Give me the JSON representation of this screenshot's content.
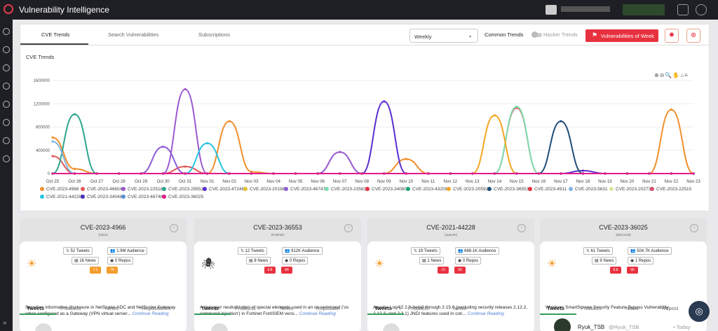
{
  "app_title": "Vulnerability Intelligence",
  "tabs": [
    "CVE Trends",
    "Search Vulnerabilities",
    "Subscriptions"
  ],
  "period_select": "Weekly",
  "common_trends": "Common Trends",
  "hacker_trends": "Hacker Trends",
  "vuln_week_button": "Vulnerabilities of Week",
  "section_title": "CVE Trends",
  "colors": {
    "accent": "#e8313f",
    "dark": "#1e1f24"
  },
  "chart_data": {
    "type": "line",
    "x": [
      "Oct 25",
      "Oct 26",
      "Oct 27",
      "Oct 28",
      "Oct 29",
      "Oct 30",
      "Oct 31",
      "Nov 01",
      "Nov 02",
      "Nov 03",
      "Nov 04",
      "Nov 05",
      "Nov 06",
      "Nov 07",
      "Nov 08",
      "Nov 09",
      "Nov 10",
      "Nov 11",
      "Nov 12",
      "Nov 13",
      "Nov 14",
      "Nov 15",
      "Nov 16",
      "Nov 17",
      "Nov 18",
      "Nov 19",
      "Nov 20",
      "Nov 21",
      "Nov 22",
      "Nov 23"
    ],
    "ylim": [
      0,
      1600000
    ],
    "yticks": [
      "1600000",
      "1200000",
      "800000",
      "400000",
      "0"
    ],
    "series": [
      {
        "name": "CVE-2023-4966",
        "color": "#f28e2b",
        "values": [
          620000,
          80000,
          0,
          0,
          0,
          0,
          0,
          0,
          900000,
          30000,
          0,
          0,
          0,
          0,
          0,
          0,
          250000,
          0,
          0,
          0,
          0,
          0,
          0,
          0,
          0,
          0,
          0,
          0,
          1100000,
          0
        ]
      },
      {
        "name": "CVE-2023-46604",
        "color": "#e15759",
        "values": [
          300000,
          0,
          0,
          0,
          0,
          0,
          120000,
          0,
          0,
          0,
          0,
          0,
          0,
          0,
          0,
          0,
          0,
          0,
          0,
          0,
          0,
          1130000,
          0,
          0,
          0,
          0,
          0,
          0,
          0,
          0
        ]
      },
      {
        "name": "CVE-2023-22518",
        "color": "#9b59d0",
        "values": [
          0,
          0,
          0,
          0,
          0,
          0,
          1450000,
          0,
          0,
          0,
          0,
          0,
          0,
          370000,
          0,
          0,
          0,
          0,
          0,
          0,
          0,
          0,
          0,
          0,
          0,
          0,
          0,
          0,
          0,
          0
        ]
      },
      {
        "name": "CVE-2023-29552",
        "color": "#2ca58d",
        "values": [
          0,
          1020000,
          0,
          0,
          0,
          0,
          0,
          0,
          0,
          0,
          0,
          0,
          0,
          0,
          0,
          0,
          0,
          0,
          0,
          0,
          0,
          0,
          0,
          0,
          0,
          0,
          0,
          0,
          0,
          0
        ]
      },
      {
        "name": "CVE-2023-47246",
        "color": "#5a2ecf",
        "values": [
          0,
          0,
          0,
          0,
          0,
          0,
          0,
          0,
          0,
          0,
          0,
          0,
          0,
          0,
          0,
          1240000,
          0,
          0,
          0,
          0,
          0,
          0,
          0,
          0,
          50000,
          0,
          0,
          0,
          0,
          0
        ]
      },
      {
        "name": "CVE-2023-20198",
        "color": "#e5c02d",
        "values": [
          0,
          0,
          0,
          0,
          0,
          0,
          0,
          0,
          0,
          0,
          0,
          0,
          0,
          0,
          0,
          0,
          0,
          0,
          0,
          0,
          0,
          0,
          0,
          0,
          0,
          0,
          0,
          0,
          0,
          0
        ]
      },
      {
        "name": "CVE-2023-46747",
        "color": "#8e5bd6",
        "values": [
          0,
          0,
          0,
          0,
          0,
          460000,
          0,
          0,
          0,
          0,
          0,
          0,
          0,
          0,
          0,
          0,
          0,
          0,
          0,
          0,
          0,
          0,
          0,
          0,
          0,
          0,
          0,
          0,
          0,
          0
        ]
      },
      {
        "name": "CVE-2023-23583",
        "color": "#7ee0b0",
        "values": [
          0,
          0,
          0,
          0,
          0,
          0,
          0,
          0,
          0,
          0,
          0,
          0,
          0,
          0,
          0,
          0,
          0,
          0,
          0,
          0,
          0,
          1150000,
          0,
          0,
          0,
          0,
          0,
          0,
          0,
          0
        ]
      },
      {
        "name": "CVE-2023-34060",
        "color": "#e8313f",
        "values": [
          0,
          0,
          0,
          0,
          0,
          0,
          0,
          0,
          0,
          0,
          0,
          0,
          0,
          0,
          0,
          0,
          0,
          0,
          0,
          0,
          0,
          0,
          0,
          0,
          0,
          0,
          0,
          0,
          0,
          0
        ]
      },
      {
        "name": "CVE-2023-43208",
        "color": "#17a572",
        "values": [
          0,
          0,
          0,
          0,
          0,
          0,
          0,
          0,
          0,
          0,
          0,
          0,
          0,
          0,
          0,
          0,
          0,
          0,
          0,
          0,
          0,
          0,
          0,
          0,
          0,
          0,
          0,
          0,
          0,
          0
        ]
      },
      {
        "name": "CVE-2023-20592",
        "color": "#f4a622",
        "values": [
          0,
          0,
          0,
          0,
          0,
          0,
          0,
          0,
          0,
          0,
          0,
          0,
          0,
          0,
          0,
          0,
          0,
          0,
          0,
          0,
          1000000,
          0,
          0,
          0,
          0,
          0,
          0,
          0,
          0,
          0
        ]
      },
      {
        "name": "CVE-2023-36553",
        "color": "#1f4e79",
        "values": [
          0,
          0,
          0,
          0,
          0,
          0,
          0,
          0,
          0,
          0,
          0,
          0,
          0,
          0,
          0,
          0,
          0,
          0,
          0,
          0,
          0,
          0,
          0,
          900000,
          0,
          0,
          0,
          0,
          0,
          0
        ]
      },
      {
        "name": "CVE-2023-4911",
        "color": "#e8313f",
        "values": [
          0,
          0,
          0,
          0,
          0,
          0,
          0,
          0,
          0,
          0,
          0,
          0,
          0,
          0,
          0,
          0,
          0,
          0,
          0,
          0,
          0,
          0,
          0,
          0,
          0,
          0,
          0,
          0,
          0,
          0
        ]
      },
      {
        "name": "CVE-2023-5631",
        "color": "#7fb3e0",
        "values": [
          550000,
          0,
          0,
          0,
          0,
          0,
          0,
          0,
          0,
          0,
          0,
          0,
          0,
          0,
          0,
          0,
          0,
          0,
          0,
          0,
          0,
          0,
          0,
          0,
          0,
          0,
          0,
          0,
          0,
          0
        ]
      },
      {
        "name": "CVE-2023-20273",
        "color": "#d8e89a",
        "values": [
          0,
          0,
          0,
          0,
          0,
          0,
          0,
          0,
          0,
          0,
          0,
          0,
          0,
          0,
          0,
          0,
          0,
          0,
          0,
          0,
          0,
          0,
          0,
          0,
          0,
          0,
          0,
          0,
          0,
          0
        ]
      },
      {
        "name": "CVE-2023-22515",
        "color": "#d94f70",
        "values": [
          0,
          0,
          0,
          0,
          0,
          0,
          0,
          0,
          0,
          0,
          0,
          0,
          0,
          0,
          0,
          0,
          0,
          0,
          0,
          0,
          0,
          0,
          0,
          0,
          0,
          0,
          0,
          0,
          0,
          0
        ]
      },
      {
        "name": "CVE-2021-44228",
        "color": "#27c4e0",
        "values": [
          0,
          0,
          0,
          0,
          0,
          0,
          0,
          520000,
          0,
          0,
          0,
          0,
          0,
          0,
          0,
          0,
          0,
          0,
          0,
          0,
          0,
          0,
          0,
          0,
          0,
          0,
          0,
          0,
          0,
          0
        ]
      },
      {
        "name": "CVE-2023-34048",
        "color": "#4b2fb8",
        "values": [
          0,
          0,
          0,
          0,
          0,
          0,
          0,
          0,
          0,
          0,
          0,
          0,
          0,
          0,
          0,
          0,
          0,
          0,
          0,
          0,
          0,
          0,
          0,
          0,
          0,
          0,
          0,
          0,
          0,
          0
        ]
      },
      {
        "name": "CVE-2023-46748",
        "color": "#5b8ed6",
        "values": [
          0,
          0,
          0,
          0,
          0,
          0,
          0,
          0,
          0,
          0,
          0,
          0,
          0,
          0,
          0,
          0,
          0,
          0,
          0,
          0,
          0,
          0,
          0,
          0,
          0,
          0,
          0,
          0,
          0,
          0
        ]
      },
      {
        "name": "CVE-2023-36025",
        "color": "#e31b8a",
        "values": [
          0,
          0,
          0,
          0,
          0,
          0,
          0,
          0,
          0,
          0,
          0,
          0,
          0,
          0,
          0,
          0,
          0,
          0,
          0,
          0,
          0,
          0,
          0,
          0,
          0,
          0,
          0,
          0,
          0,
          0
        ]
      }
    ],
    "legend_position": "bottom"
  },
  "cards": [
    {
      "title": "CVE-2023-4966",
      "sub": "(Citrix)",
      "icon": "sun-bug-icon",
      "tweets": "52 Tweets",
      "audience": "1.9M Audience",
      "news": "16 News",
      "repos": "0 Repos",
      "s1": "7.5",
      "s2": "76",
      "c1": "#f39c2b",
      "c2": "#f39c2b",
      "desc": "Sensitive information disclosure in NetScaler ADC and NetScaler Gateway when configured as a Gateway (VPN virtual server...",
      "more": "Continue Reading",
      "t": [
        "Tweets",
        "Products",
        "News",
        "Repositories"
      ]
    },
    {
      "title": "CVE-2023-36553",
      "sub": "(Fortinet)",
      "icon": "bug-icon",
      "tweets": "12 Tweets",
      "audience": "912K Audience",
      "news": "8 News",
      "repos": "0 Repos",
      "s1": "9.8",
      "s2": "84",
      "c1": "#e8313f",
      "c2": "#e8313f",
      "desc": "A improper neutralization of special elements used in an os command ('os command injection') in Fortinet FortiSIEM versi...",
      "more": "Continue Reading",
      "t": [
        "Tweets",
        "Products",
        "News",
        "Repositori"
      ]
    },
    {
      "title": "CVE-2021-44228",
      "sub": "(Apache)",
      "icon": "sun-bug-icon",
      "tweets": "19 Tweets",
      "audience": "668.1K Audience",
      "news": "1 News",
      "repos": "0 Repos",
      "s1": "10",
      "s2": "99",
      "c1": "#e8313f",
      "c2": "#e8313f",
      "desc": "Apache Log4j2 2.0-beta9 through 2.15.0 (excluding security releases 2.12.2, 2.12.3, and 2.3.1) JNDI features used in con...",
      "more": "Continue Reading",
      "t": [
        "Tweets",
        "Products",
        "News"
      ]
    },
    {
      "title": "CVE-2023-36025",
      "sub": "(Microsoft)",
      "icon": "sun-bug-icon",
      "tweets": "61 Tweets",
      "audience": "504.7K Audience",
      "news": "9 News",
      "repos": "1 Repos",
      "s1": "8.8",
      "s2": "96",
      "c1": "#e8313f",
      "c2": "#e8313f",
      "desc": "Windows SmartScreen Security Feature Bypass Vulnerability",
      "more": "",
      "t": [
        "Tweets",
        "Products",
        "News",
        "Reposi"
      ]
    }
  ],
  "tweet_user": {
    "name": "Ryuk_TSB",
    "handle": "@Ryuk_TSB",
    "time": "• Today"
  }
}
